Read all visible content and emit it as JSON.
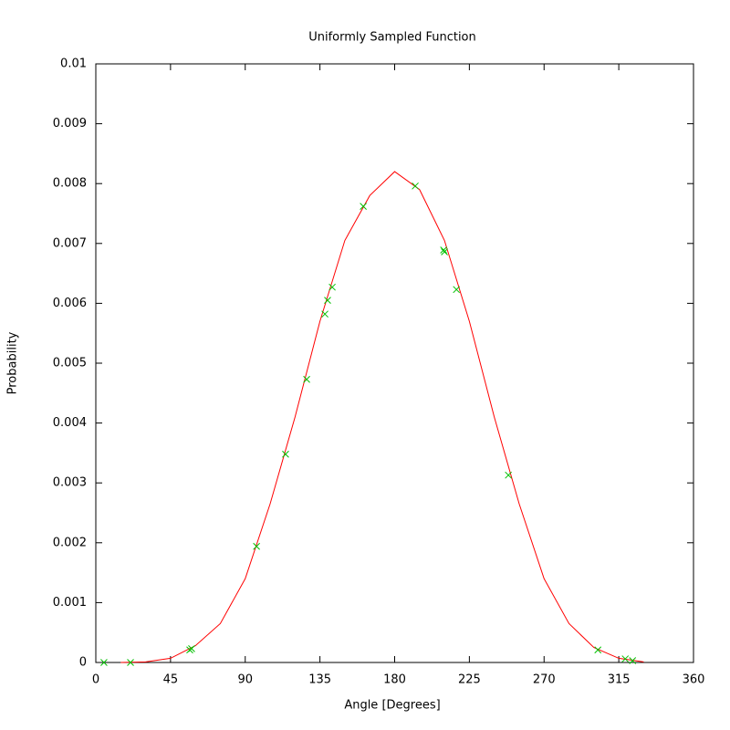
{
  "chart_data": {
    "type": "line",
    "title": "Uniformly Sampled Function",
    "x_label": "Angle [Degrees]",
    "y_label": "Probability",
    "xlim": [
      0,
      360
    ],
    "xticks": [
      0,
      45,
      90,
      135,
      180,
      225,
      270,
      315,
      360
    ],
    "ylim": [
      0,
      0.01
    ],
    "yticks": [
      0,
      0.001,
      0.002,
      0.003,
      0.004,
      0.005,
      0.006,
      0.007,
      0.008,
      0.009,
      0.01
    ],
    "series": [
      {
        "style": "line",
        "color": "#ff0000",
        "x": [
          15,
          30,
          45,
          60,
          75,
          90,
          105,
          120,
          135,
          150,
          165,
          180,
          195,
          210,
          225,
          240,
          255,
          270,
          285,
          300,
          315,
          330
        ],
        "values": [
          0,
          1e-05,
          7e-05,
          0.00028,
          0.00065,
          0.0014,
          0.00265,
          0.0041,
          0.0057,
          0.00705,
          0.0078,
          0.0082,
          0.0079,
          0.00705,
          0.0057,
          0.0041,
          0.00265,
          0.0014,
          0.00065,
          0.00025,
          7e-05,
          1e-05
        ]
      },
      {
        "style": "points",
        "color": "#00c000",
        "x": [
          4.9,
          20.9,
          56.6,
          57.7,
          96.8,
          114.3,
          127,
          138,
          139.6,
          142.4,
          161.1,
          192.4,
          209.5,
          210,
          217.2,
          248.5,
          302.4,
          318.9,
          323.3
        ],
        "values": [
          0,
          0,
          0.00021,
          0.00023,
          0.00194,
          0.00348,
          0.00473,
          0.00582,
          0.00605,
          0.00627,
          0.00762,
          0.00796,
          0.00689,
          0.00686,
          0.00623,
          0.00313,
          0.00021,
          6e-05,
          3e-05
        ]
      }
    ]
  }
}
